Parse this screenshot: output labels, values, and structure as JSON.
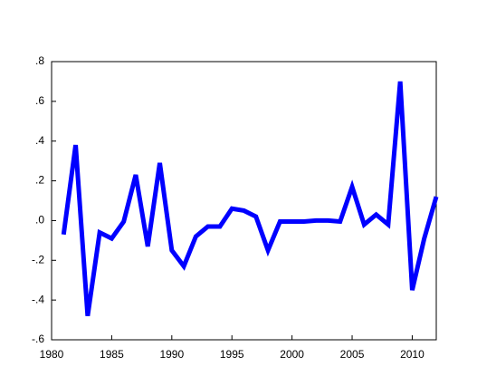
{
  "chart_data": {
    "type": "line",
    "x": [
      1981,
      1982,
      1983,
      1984,
      1985,
      1986,
      1987,
      1988,
      1989,
      1990,
      1991,
      1992,
      1993,
      1994,
      1995,
      1996,
      1997,
      1998,
      1999,
      2000,
      2001,
      2002,
      2003,
      2004,
      2005,
      2006,
      2007,
      2008,
      2009,
      2010,
      2011,
      2012
    ],
    "series": [
      {
        "color": "#0000ff",
        "values": [
          -0.07,
          0.38,
          -0.48,
          -0.06,
          -0.09,
          -0.005,
          0.23,
          -0.13,
          0.29,
          -0.15,
          -0.23,
          -0.08,
          -0.03,
          -0.03,
          0.06,
          0.05,
          0.02,
          -0.15,
          -0.005,
          -0.005,
          -0.005,
          0.0,
          0.0,
          -0.005,
          0.17,
          -0.02,
          0.03,
          -0.02,
          0.7,
          -0.35,
          -0.09,
          0.12
        ]
      }
    ],
    "xlim": [
      1980,
      2012
    ],
    "xticks": [
      1980,
      1985,
      1990,
      1995,
      2000,
      2005,
      2010
    ],
    "ylim": [
      -0.6,
      0.8
    ],
    "yticks": [
      {
        "value": -0.6,
        "label": "-.6"
      },
      {
        "value": -0.4,
        "label": "-.4"
      },
      {
        "value": -0.2,
        "label": "-.2"
      },
      {
        "value": 0.0,
        "label": ".0"
      },
      {
        "value": 0.2,
        "label": ".2"
      },
      {
        "value": 0.4,
        "label": ".4"
      },
      {
        "value": 0.6,
        "label": ".6"
      },
      {
        "value": 0.8,
        "label": ".8"
      }
    ],
    "grid": false
  }
}
